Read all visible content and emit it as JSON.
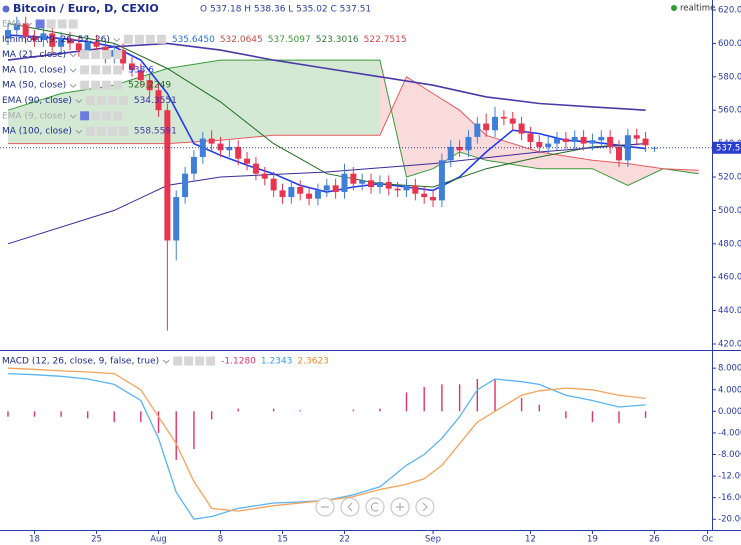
{
  "chart_data": [
    {
      "type": "candlestick",
      "title": "Bitcoin / Euro, D, CEXIO",
      "ohlc": "O 537.18 H 538.36 L 535.02 C 537.51",
      "status": "realtime",
      "up_color": "#3f7fd8",
      "down_color": "#e8344e",
      "x": [
        0,
        1,
        2,
        3,
        4,
        5,
        6,
        7,
        8,
        9,
        10,
        11,
        12,
        13,
        14,
        15,
        16,
        17,
        18,
        19,
        20,
        21,
        22,
        23,
        24,
        25,
        26,
        27,
        28,
        29,
        30,
        31,
        32,
        33,
        34,
        35,
        36,
        37,
        38,
        39,
        40,
        41,
        42,
        43,
        44,
        45,
        46,
        47,
        48,
        49,
        50,
        51,
        52,
        53,
        54,
        55,
        56,
        57,
        58,
        59,
        60,
        61,
        62,
        63,
        64,
        65,
        66,
        67,
        68,
        69,
        70,
        71,
        72,
        73
      ],
      "open": [
        603,
        608,
        612,
        604,
        602,
        606,
        598,
        603,
        600,
        596,
        601,
        598,
        592,
        596,
        588,
        584,
        578,
        572,
        560,
        482,
        508,
        522,
        532,
        543,
        540,
        536,
        538,
        531,
        528,
        522,
        519,
        512,
        508,
        514,
        510,
        507,
        512,
        515,
        511,
        522,
        516,
        518,
        514,
        517,
        513,
        512,
        515,
        510,
        508,
        506,
        530,
        538,
        536,
        544,
        552,
        548,
        556,
        555,
        552,
        546,
        541,
        538,
        540,
        543,
        541,
        544,
        540,
        542,
        544,
        538,
        530,
        545,
        543,
        537.18
      ],
      "high": [
        612,
        616,
        616,
        608,
        610,
        610,
        607,
        607,
        604,
        605,
        605,
        602,
        600,
        600,
        592,
        588,
        582,
        576,
        564,
        512,
        526,
        536,
        547,
        548,
        544,
        542,
        542,
        535,
        532,
        526,
        523,
        516,
        518,
        518,
        514,
        516,
        519,
        519,
        528,
        526,
        522,
        522,
        521,
        521,
        517,
        519,
        519,
        514,
        512,
        534,
        542,
        542,
        548,
        556,
        558,
        562,
        560,
        559,
        556,
        550,
        545,
        544,
        547,
        547,
        548,
        548,
        546,
        548,
        548,
        542,
        549,
        549,
        547,
        538.36
      ],
      "low": [
        599,
        604,
        600,
        598,
        598,
        594,
        594,
        596,
        592,
        592,
        594,
        588,
        588,
        584,
        580,
        574,
        568,
        556,
        428,
        470,
        504,
        518,
        528,
        536,
        532,
        532,
        527,
        524,
        518,
        515,
        508,
        504,
        504,
        506,
        503,
        503,
        508,
        507,
        507,
        512,
        512,
        510,
        510,
        509,
        508,
        508,
        506,
        504,
        502,
        502,
        526,
        532,
        532,
        540,
        544,
        544,
        551,
        548,
        542,
        537,
        534,
        534,
        536,
        537,
        537,
        536,
        536,
        538,
        534,
        526,
        526,
        539,
        535,
        535.02
      ],
      "close": [
        608,
        612,
        604,
        602,
        606,
        598,
        603,
        600,
        596,
        601,
        598,
        592,
        596,
        588,
        584,
        578,
        572,
        560,
        482,
        508,
        522,
        532,
        543,
        540,
        536,
        538,
        531,
        528,
        522,
        519,
        512,
        508,
        514,
        510,
        507,
        512,
        515,
        511,
        522,
        516,
        518,
        514,
        517,
        513,
        512,
        515,
        510,
        508,
        506,
        530,
        538,
        536,
        544,
        552,
        548,
        556,
        555,
        552,
        546,
        541,
        538,
        540,
        543,
        541,
        544,
        540,
        542,
        544,
        538,
        530,
        545,
        543,
        539,
        537.51
      ],
      "indicators": [
        {
          "name": "EMA",
          "hidden": true,
          "readouts": []
        },
        {
          "name": "Ichimoku (9, 26, 52, 26)",
          "readouts": [
            "535.6450",
            "532.0645",
            "537.5097",
            "523.3016",
            "522.7515"
          ],
          "readout_colors": [
            "#2b6fe0",
            "#c0504d",
            "#3a9a3a",
            "#2e7d32",
            "#d9434a"
          ],
          "cloud": {
            "up_color": "#3a9a3a",
            "down_color": "#e8595f",
            "x": [
              0,
              6,
              12,
              18,
              24,
              30,
              36,
              42,
              45,
              48,
              51,
              54,
              60,
              66,
              70,
              74,
              78
            ],
            "span_a": [
              560,
              570,
              575,
              585,
              590,
              590,
              590,
              590,
              520,
              525,
              535,
              530,
              525,
              525,
              515,
              525,
              522
            ],
            "span_b": [
              540,
              540,
              540,
              540,
              542,
              545,
              545,
              545,
              580,
              570,
              560,
              545,
              535,
              530,
              528,
              525,
              524
            ]
          }
        },
        {
          "name": "MA (21, close)",
          "readouts": []
        },
        {
          "name": "MA (10, close)",
          "readouts": [
            "538.6"
          ],
          "color": "#1f3cf0",
          "x": [
            0,
            3,
            6,
            9,
            12,
            15,
            18,
            21,
            24,
            27,
            30,
            33,
            36,
            39,
            42,
            45,
            48,
            51,
            54,
            57,
            60,
            63,
            66,
            69,
            72
          ],
          "values": [
            605,
            604,
            603,
            601,
            598,
            590,
            570,
            540,
            533,
            527,
            522,
            515,
            511,
            514,
            516,
            514,
            512,
            520,
            535,
            548,
            546,
            542,
            541,
            539,
            537
          ]
        },
        {
          "name": "MA (50, close)",
          "readouts": [
            "529.2249"
          ],
          "color": "#1f6b1f",
          "x": [
            0,
            6,
            12,
            18,
            24,
            30,
            36,
            42,
            48,
            54,
            60,
            66,
            72
          ],
          "values": [
            612,
            606,
            600,
            585,
            565,
            540,
            522,
            516,
            514,
            525,
            532,
            538,
            540
          ]
        },
        {
          "name": "EMA (90, close)",
          "readouts": [
            "534.3551"
          ],
          "color": "#3b2a9e",
          "x": [
            0,
            12,
            18,
            24,
            36,
            48,
            60,
            72
          ],
          "values": [
            480,
            500,
            515,
            520,
            523,
            528,
            535,
            540
          ]
        },
        {
          "name": "EMA (9, close)",
          "hidden": true,
          "readouts": []
        },
        {
          "name": "MA (100, close)",
          "readouts": [
            "558.5591"
          ],
          "color": "#4a3aa8",
          "x": [
            0,
            12,
            18,
            24,
            30,
            36,
            42,
            48,
            54,
            60,
            66,
            72
          ],
          "values": [
            590,
            598,
            600,
            596,
            590,
            585,
            580,
            575,
            568,
            564,
            562,
            560
          ]
        }
      ],
      "last_price": {
        "value": 537.51,
        "label": "537.5"
      },
      "xlim": [
        -0.9,
        79.5
      ],
      "xticks": [
        {
          "value": 3,
          "label": "18"
        },
        {
          "value": 10,
          "label": "25"
        },
        {
          "value": 17,
          "label": "Aug"
        },
        {
          "value": 24,
          "label": "8"
        },
        {
          "value": 31,
          "label": "15"
        },
        {
          "value": 38,
          "label": "22"
        },
        {
          "value": 48,
          "label": "Sep"
        },
        {
          "value": 59,
          "label": "12"
        },
        {
          "value": 66,
          "label": "19"
        },
        {
          "value": 73,
          "label": "26"
        },
        {
          "value": 79,
          "label": "Oc"
        }
      ],
      "ylim": [
        416.4,
        626
      ],
      "yticks": [
        {
          "value": 620,
          "label": "620.00"
        },
        {
          "value": 600,
          "label": "600.00"
        },
        {
          "value": 580,
          "label": "580.00"
        },
        {
          "value": 560,
          "label": "560.00"
        },
        {
          "value": 540,
          "label": "540.00"
        },
        {
          "value": 520,
          "label": "520.00"
        },
        {
          "value": 500,
          "label": "500.00"
        },
        {
          "value": 480,
          "label": "480.00"
        },
        {
          "value": 460,
          "label": "460.00"
        },
        {
          "value": 440,
          "label": "440.00"
        },
        {
          "value": 420,
          "label": "420.00"
        }
      ]
    },
    {
      "type": "macd",
      "title": "MACD (12, 26, close, 9, false, true)",
      "readouts": [
        "-1.1280",
        "1.2343",
        "2.3623"
      ],
      "readout_colors": [
        "#e0306a",
        "#3a9ee8",
        "#f08a2c"
      ],
      "x": [
        0,
        3,
        6,
        9,
        12,
        15,
        17,
        19,
        21,
        23,
        26,
        30,
        33,
        36,
        39,
        42,
        45,
        47,
        49,
        51,
        53,
        55,
        58,
        60,
        63,
        66,
        69,
        72
      ],
      "histogram": {
        "color": "#e0306a",
        "values": [
          -1,
          -1,
          -1,
          -1.3,
          -2,
          -2,
          -4,
          -9,
          -7,
          -1.5,
          0.5,
          0.5,
          0.2,
          0,
          0.3,
          0.5,
          3.5,
          4.5,
          5,
          5,
          6,
          6,
          2.5,
          1.2,
          -1.3,
          -2,
          -2.2,
          -1.2
        ]
      },
      "series": [
        {
          "color": "#5ab4f0",
          "values": [
            7,
            6.8,
            6.5,
            6,
            5,
            2,
            -5,
            -15,
            -20,
            -19.5,
            -18,
            -17,
            -16.8,
            -16.5,
            -15.5,
            -14,
            -10,
            -8,
            -5,
            -1,
            4,
            6,
            5.5,
            5,
            3,
            2,
            0.8,
            1.2
          ]
        },
        {
          "color": "#f5a35c",
          "values": [
            8,
            7.8,
            7.5,
            7.3,
            7,
            4,
            -1,
            -6,
            -13,
            -18,
            -18.5,
            -17.5,
            -17,
            -16.5,
            -15.8,
            -14.5,
            -13.5,
            -12.5,
            -10,
            -6,
            -2,
            0,
            3,
            3.8,
            4.3,
            4,
            3,
            2.4
          ]
        }
      ],
      "ylim": [
        -22,
        11
      ],
      "yticks": [
        {
          "value": 8,
          "label": "8.0000"
        },
        {
          "value": 4,
          "label": "4.0000"
        },
        {
          "value": 0,
          "label": "0.0000"
        },
        {
          "value": -4,
          "label": "-4.0000"
        },
        {
          "value": -8,
          "label": "-8.0000"
        },
        {
          "value": -12,
          "label": "-12.0000"
        },
        {
          "value": -16,
          "label": "-16.0000"
        },
        {
          "value": -20,
          "label": "-20.0000"
        }
      ]
    }
  ]
}
